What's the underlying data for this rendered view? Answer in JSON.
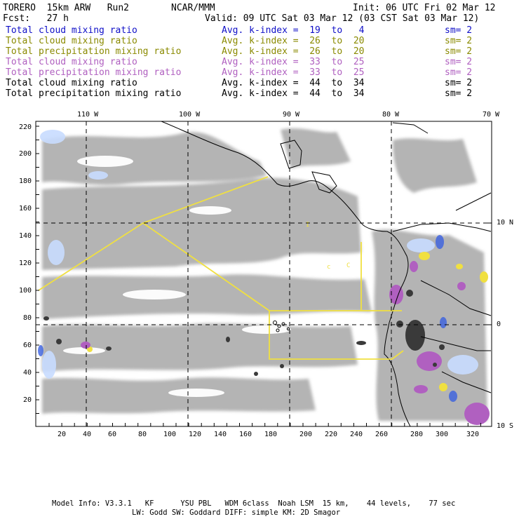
{
  "header": {
    "model": "TORERO  15km ARW   Run2",
    "org": "NCAR/MMM",
    "init": "Init: 06 UTC Fri 02 Mar 12",
    "fcst": "Fcst:   27 h",
    "valid": "Valid: 09 UTC Sat 03 Mar 12 (03 CST Sat 03 Mar 12)"
  },
  "legend": [
    {
      "field": "Total cloud mixing ratio",
      "range": "Avg. k-index =  19  to   4",
      "sm": "sm= 2",
      "color": "#1010c8"
    },
    {
      "field": "Total cloud mixing ratio",
      "range": "Avg. k-index =  26  to  20",
      "sm": "sm= 2",
      "color": "#8a8a00"
    },
    {
      "field": "Total precipitation mixing ratio",
      "range": "Avg. k-index =  26  to  20",
      "sm": "sm= 2",
      "color": "#8a8a00"
    },
    {
      "field": "Total cloud mixing ratio",
      "range": "Avg. k-index =  33  to  25",
      "sm": "sm= 2",
      "color": "#b060c0"
    },
    {
      "field": "Total precipitation mixing ratio",
      "range": "Avg. k-index =  33  to  25",
      "sm": "sm= 2",
      "color": "#b060c0"
    },
    {
      "field": "Total cloud mixing ratio",
      "range": "Avg. k-index =  44  to  34",
      "sm": "sm= 2",
      "color": "#000000"
    },
    {
      "field": "Total precipitation mixing ratio",
      "range": "Avg. k-index =  44  to  34",
      "sm": "sm= 2",
      "color": "#000000"
    }
  ],
  "map": {
    "lon_labels": [
      "110 W",
      "100 W",
      "90 W",
      "80 W",
      "70 W"
    ],
    "lat_labels": [
      "10 N",
      "0",
      "10 S"
    ],
    "y_ticks": [
      "220",
      "200",
      "180",
      "160",
      "140",
      "120",
      "100",
      "80",
      "60",
      "40",
      "20"
    ],
    "x_ticks": [
      "20",
      "40",
      "60",
      "80",
      "100",
      "120",
      "140",
      "160",
      "180",
      "200",
      "220",
      "240",
      "260",
      "280",
      "300",
      "320"
    ],
    "colors": {
      "cloud_gray": "#b4b4b4",
      "track_yellow": "#f0e040",
      "magenta": "#b060c0",
      "blue": "#3a60e0",
      "light_blue": "#c8dcff"
    }
  },
  "footer": {
    "line1": "Model Info: V3.3.1   KF      YSU PBL   WDM 6class  Noah LSM  15 km,    44 levels,    77 sec",
    "line2": "LW: Godd SW: Goddard DIFF: simple KM: 2D Smagor"
  }
}
